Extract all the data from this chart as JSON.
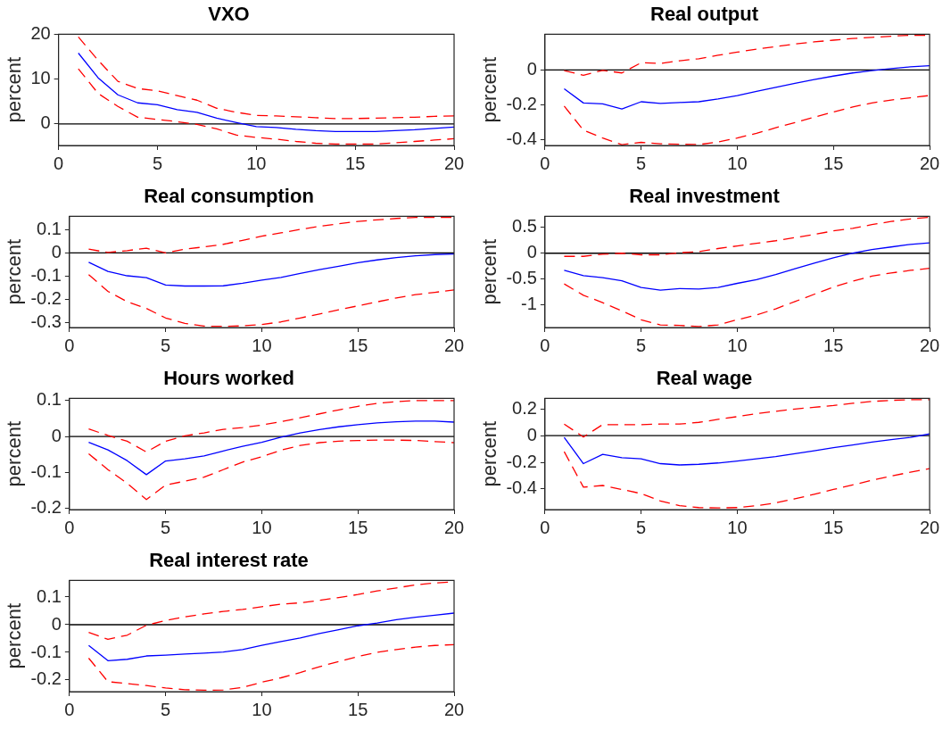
{
  "chart_data": [
    {
      "type": "line",
      "title": "VXO",
      "ylabel": "percent",
      "x": [
        1,
        2,
        3,
        4,
        5,
        6,
        7,
        8,
        9,
        10,
        11,
        12,
        13,
        14,
        15,
        16,
        17,
        18,
        19,
        20
      ],
      "xlim": [
        0,
        20
      ],
      "xticks": [
        0,
        5,
        10,
        15,
        20
      ],
      "ylim": [
        -4.8,
        20
      ],
      "yticks": [
        0,
        10,
        20
      ],
      "ref_lines": [
        {
          "axis": "y",
          "value": 0,
          "color": "#000000"
        }
      ],
      "series": [
        {
          "color": "#0000ff",
          "line_style": "solid",
          "values": [
            15.8,
            10.3,
            6.5,
            4.7,
            4.3,
            3.2,
            2.6,
            1.3,
            0.3,
            -0.6,
            -0.8,
            -1.2,
            -1.5,
            -1.7,
            -1.7,
            -1.7,
            -1.5,
            -1.3,
            -1.0,
            -0.7
          ]
        },
        {
          "color": "#ff0000",
          "line_style": "dashed",
          "values": [
            19.4,
            14.2,
            9.5,
            7.9,
            7.4,
            6.3,
            5.3,
            3.5,
            2.6,
            1.9,
            1.8,
            1.6,
            1.4,
            1.2,
            1.2,
            1.3,
            1.4,
            1.5,
            1.7,
            1.8
          ]
        },
        {
          "color": "#ff0000",
          "line_style": "dashed",
          "values": [
            12.3,
            6.8,
            3.9,
            1.5,
            1.0,
            0.5,
            -0.1,
            -1.1,
            -2.5,
            -3.0,
            -3.4,
            -3.9,
            -4.3,
            -4.5,
            -4.5,
            -4.5,
            -4.2,
            -3.9,
            -3.6,
            -3.3
          ]
        }
      ]
    },
    {
      "type": "line",
      "title": "Real output",
      "ylabel": "percent",
      "x": [
        1,
        2,
        3,
        4,
        5,
        6,
        7,
        8,
        9,
        10,
        11,
        12,
        13,
        14,
        15,
        16,
        17,
        18,
        19,
        20
      ],
      "xlim": [
        0,
        20
      ],
      "xticks": [
        0,
        5,
        10,
        15,
        20
      ],
      "ylim": [
        -0.435,
        0.206
      ],
      "yticks": [
        -0.4,
        -0.2,
        0
      ],
      "ref_lines": [
        {
          "axis": "y",
          "value": 0,
          "color": "#000000"
        }
      ],
      "series": [
        {
          "color": "#0000ff",
          "line_style": "solid",
          "values": [
            -0.108,
            -0.19,
            -0.195,
            -0.225,
            -0.183,
            -0.193,
            -0.187,
            -0.183,
            -0.167,
            -0.148,
            -0.123,
            -0.1,
            -0.077,
            -0.055,
            -0.035,
            -0.017,
            -0.003,
            0.008,
            0.018,
            0.025
          ]
        },
        {
          "color": "#ff0000",
          "line_style": "dashed",
          "values": [
            -0.003,
            -0.03,
            -0.002,
            -0.017,
            0.042,
            0.038,
            0.053,
            0.065,
            0.085,
            0.103,
            0.12,
            0.135,
            0.15,
            0.162,
            0.172,
            0.182,
            0.188,
            0.195,
            0.2,
            0.2
          ]
        },
        {
          "color": "#ff0000",
          "line_style": "dashed",
          "values": [
            -0.208,
            -0.347,
            -0.392,
            -0.43,
            -0.417,
            -0.425,
            -0.428,
            -0.43,
            -0.415,
            -0.392,
            -0.365,
            -0.333,
            -0.303,
            -0.272,
            -0.242,
            -0.213,
            -0.19,
            -0.173,
            -0.16,
            -0.147
          ]
        }
      ]
    },
    {
      "type": "line",
      "title": "Real consumption",
      "ylabel": "percent",
      "x": [
        1,
        2,
        3,
        4,
        5,
        6,
        7,
        8,
        9,
        10,
        11,
        12,
        13,
        14,
        15,
        16,
        17,
        18,
        19,
        20
      ],
      "xlim": [
        0,
        20
      ],
      "xticks": [
        0,
        5,
        10,
        15,
        20
      ],
      "ylim": [
        -0.32,
        0.157
      ],
      "yticks": [
        -0.3,
        -0.2,
        -0.1,
        0,
        0.1
      ],
      "ref_lines": [
        {
          "axis": "y",
          "value": 0,
          "color": "#000000"
        }
      ],
      "series": [
        {
          "color": "#0000ff",
          "line_style": "solid",
          "values": [
            -0.04,
            -0.079,
            -0.098,
            -0.106,
            -0.138,
            -0.142,
            -0.142,
            -0.141,
            -0.13,
            -0.117,
            -0.105,
            -0.088,
            -0.072,
            -0.057,
            -0.042,
            -0.03,
            -0.02,
            -0.012,
            -0.007,
            -0.005
          ]
        },
        {
          "color": "#ff0000",
          "line_style": "dashed",
          "values": [
            0.016,
            0.002,
            0.01,
            0.02,
            0,
            0.016,
            0.026,
            0.037,
            0.054,
            0.072,
            0.086,
            0.101,
            0.114,
            0.125,
            0.135,
            0.142,
            0.148,
            0.152,
            0.152,
            0.152
          ]
        },
        {
          "color": "#ff0000",
          "line_style": "dashed",
          "values": [
            -0.093,
            -0.165,
            -0.209,
            -0.238,
            -0.279,
            -0.302,
            -0.314,
            -0.315,
            -0.313,
            -0.307,
            -0.296,
            -0.279,
            -0.262,
            -0.244,
            -0.227,
            -0.21,
            -0.193,
            -0.179,
            -0.169,
            -0.159
          ]
        }
      ]
    },
    {
      "type": "line",
      "title": "Real investment",
      "ylabel": "percent",
      "x": [
        1,
        2,
        3,
        4,
        5,
        6,
        7,
        8,
        9,
        10,
        11,
        12,
        13,
        14,
        15,
        16,
        17,
        18,
        19,
        20
      ],
      "xlim": [
        0,
        20
      ],
      "xticks": [
        0,
        5,
        10,
        15,
        20
      ],
      "ylim": [
        -1.43,
        0.71
      ],
      "yticks": [
        -1,
        -0.5,
        0,
        0.5
      ],
      "ref_lines": [
        {
          "axis": "y",
          "value": 0,
          "color": "#000000"
        }
      ],
      "series": [
        {
          "color": "#0000ff",
          "line_style": "solid",
          "values": [
            -0.33,
            -0.43,
            -0.47,
            -0.53,
            -0.66,
            -0.71,
            -0.68,
            -0.69,
            -0.66,
            -0.58,
            -0.51,
            -0.41,
            -0.3,
            -0.19,
            -0.09,
            0,
            0.07,
            0.12,
            0.17,
            0.2
          ]
        },
        {
          "color": "#ff0000",
          "line_style": "dashed",
          "values": [
            -0.06,
            -0.06,
            -0.02,
            0,
            -0.03,
            -0.03,
            0.01,
            0.03,
            0.09,
            0.14,
            0.19,
            0.24,
            0.3,
            0.36,
            0.43,
            0.48,
            0.55,
            0.61,
            0.66,
            0.69
          ]
        },
        {
          "color": "#ff0000",
          "line_style": "dashed",
          "values": [
            -0.59,
            -0.81,
            -0.95,
            -1.11,
            -1.28,
            -1.38,
            -1.39,
            -1.41,
            -1.38,
            -1.28,
            -1.19,
            -1.07,
            -0.93,
            -0.79,
            -0.65,
            -0.54,
            -0.44,
            -0.38,
            -0.33,
            -0.29
          ]
        }
      ]
    },
    {
      "type": "line",
      "title": "Hours worked",
      "ylabel": "percent",
      "x": [
        1,
        2,
        3,
        4,
        5,
        6,
        7,
        8,
        9,
        10,
        11,
        12,
        13,
        14,
        15,
        16,
        17,
        18,
        19,
        20
      ],
      "xlim": [
        0,
        20
      ],
      "xticks": [
        0,
        5,
        10,
        15,
        20
      ],
      "ylim": [
        -0.203,
        0.106
      ],
      "yticks": [
        -0.2,
        -0.1,
        0,
        0.1
      ],
      "ref_lines": [
        {
          "axis": "y",
          "value": 0,
          "color": "#000000"
        }
      ],
      "series": [
        {
          "color": "#0000ff",
          "line_style": "solid",
          "values": [
            -0.016,
            -0.037,
            -0.067,
            -0.106,
            -0.068,
            -0.062,
            -0.054,
            -0.04,
            -0.027,
            -0.016,
            -0.002,
            0.01,
            0.019,
            0.027,
            0.033,
            0.038,
            0.041,
            0.043,
            0.043,
            0.04
          ]
        },
        {
          "color": "#ff0000",
          "line_style": "dashed",
          "values": [
            0.021,
            0.003,
            -0.013,
            -0.043,
            -0.013,
            0.002,
            0.01,
            0.02,
            0.025,
            0.032,
            0.041,
            0.052,
            0.063,
            0.074,
            0.084,
            0.092,
            0.097,
            0.1,
            0.1,
            0.1
          ]
        },
        {
          "color": "#ff0000",
          "line_style": "dashed",
          "values": [
            -0.048,
            -0.092,
            -0.13,
            -0.175,
            -0.135,
            -0.124,
            -0.113,
            -0.092,
            -0.071,
            -0.056,
            -0.038,
            -0.025,
            -0.017,
            -0.013,
            -0.011,
            -0.01,
            -0.01,
            -0.011,
            -0.014,
            -0.017
          ]
        }
      ]
    },
    {
      "type": "line",
      "title": "Real wage",
      "ylabel": "percent",
      "x": [
        1,
        2,
        3,
        4,
        5,
        6,
        7,
        8,
        9,
        10,
        11,
        12,
        13,
        14,
        15,
        16,
        17,
        18,
        19,
        20
      ],
      "xlim": [
        0,
        20
      ],
      "xticks": [
        0,
        5,
        10,
        15,
        20
      ],
      "ylim": [
        -0.555,
        0.28
      ],
      "yticks": [
        -0.4,
        -0.2,
        0,
        0.2
      ],
      "ref_lines": [
        {
          "axis": "y",
          "value": 0,
          "color": "#000000"
        }
      ],
      "series": [
        {
          "color": "#0000ff",
          "line_style": "solid",
          "values": [
            -0.013,
            -0.21,
            -0.14,
            -0.165,
            -0.174,
            -0.21,
            -0.22,
            -0.215,
            -0.205,
            -0.19,
            -0.174,
            -0.157,
            -0.135,
            -0.113,
            -0.09,
            -0.07,
            -0.048,
            -0.03,
            -0.013,
            0.013
          ]
        },
        {
          "color": "#ff0000",
          "line_style": "dashed",
          "values": [
            0.087,
            -0.01,
            0.083,
            0.083,
            0.083,
            0.087,
            0.087,
            0.1,
            0.122,
            0.143,
            0.165,
            0.183,
            0.2,
            0.213,
            0.226,
            0.243,
            0.257,
            0.265,
            0.27,
            0.27
          ]
        },
        {
          "color": "#ff0000",
          "line_style": "dashed",
          "values": [
            -0.12,
            -0.387,
            -0.374,
            -0.404,
            -0.435,
            -0.49,
            -0.526,
            -0.54,
            -0.543,
            -0.54,
            -0.526,
            -0.505,
            -0.474,
            -0.44,
            -0.404,
            -0.37,
            -0.335,
            -0.304,
            -0.274,
            -0.248
          ]
        }
      ]
    },
    {
      "type": "line",
      "title": "Real interest rate",
      "ylabel": "percent",
      "x": [
        1,
        2,
        3,
        4,
        5,
        6,
        7,
        8,
        9,
        10,
        11,
        12,
        13,
        14,
        15,
        16,
        17,
        18,
        19,
        20
      ],
      "xlim": [
        0,
        20
      ],
      "xticks": [
        0,
        5,
        10,
        15,
        20
      ],
      "ylim": [
        -0.242,
        0.16
      ],
      "yticks": [
        -0.2,
        -0.1,
        0,
        0.1
      ],
      "ref_lines": [
        {
          "axis": "y",
          "value": 0,
          "color": "#000000"
        }
      ],
      "series": [
        {
          "color": "#0000ff",
          "line_style": "solid",
          "values": [
            -0.075,
            -0.13,
            -0.125,
            -0.113,
            -0.11,
            -0.106,
            -0.103,
            -0.099,
            -0.09,
            -0.075,
            -0.061,
            -0.048,
            -0.032,
            -0.018,
            -0.004,
            0.006,
            0.018,
            0.027,
            0.034,
            0.042
          ]
        },
        {
          "color": "#ff0000",
          "line_style": "dashed",
          "values": [
            -0.028,
            -0.053,
            -0.038,
            -0.002,
            0.015,
            0.028,
            0.039,
            0.048,
            0.055,
            0.065,
            0.074,
            0.079,
            0.088,
            0.098,
            0.109,
            0.122,
            0.133,
            0.144,
            0.151,
            0.155
          ]
        },
        {
          "color": "#ff0000",
          "line_style": "dashed",
          "values": [
            -0.121,
            -0.206,
            -0.213,
            -0.22,
            -0.229,
            -0.235,
            -0.237,
            -0.236,
            -0.227,
            -0.208,
            -0.192,
            -0.173,
            -0.152,
            -0.133,
            -0.115,
            -0.1,
            -0.09,
            -0.081,
            -0.075,
            -0.072
          ]
        }
      ]
    }
  ]
}
